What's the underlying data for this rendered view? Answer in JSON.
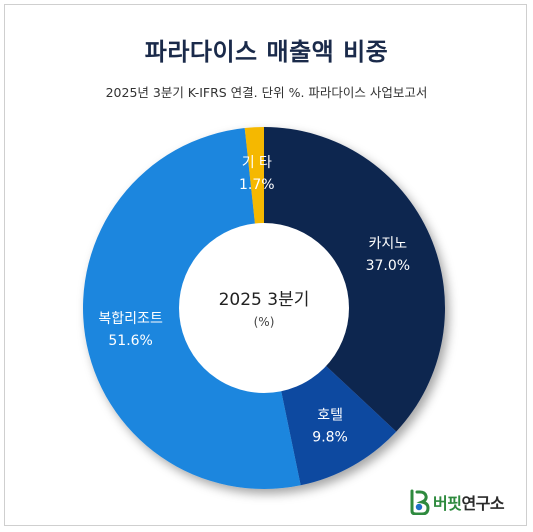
{
  "title": "파라다이스 매출액 비중",
  "subtitle": "2025년 3분기 K-IFRS 연결. 단위 %. 파라다이스 사업보고서",
  "brand": {
    "name_prefix": "버핏",
    "name_suffix": "연구소"
  },
  "chart_data": {
    "type": "pie",
    "title": "파라다이스 매출액 비중",
    "subtitle": "2025년 3분기 K-IFRS 연결. 단위 %. 파라다이스 사업보고서",
    "center_label": "2025 3분기",
    "center_unit": "(%)",
    "donut": true,
    "categories": [
      "카지노",
      "호텔",
      "복합리조트",
      "기 타"
    ],
    "values": [
      37.0,
      9.8,
      51.6,
      1.7
    ],
    "value_labels": [
      "37.0%",
      "9.8%",
      "51.6%",
      "1.7%"
    ],
    "colors": [
      "#0b2550",
      "#0e4aa0",
      "#1f86de",
      "#f5b800"
    ],
    "label_colors": [
      "#ffffff",
      "#ffffff",
      "#ffffff",
      "#ffffff"
    ]
  }
}
